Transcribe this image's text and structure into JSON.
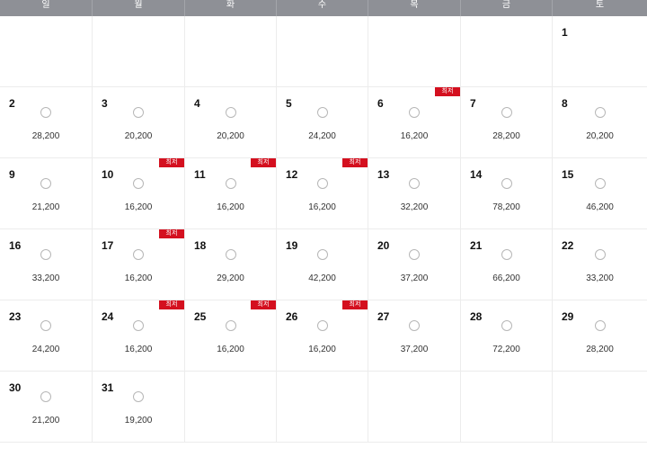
{
  "weekdays": [
    "일",
    "월",
    "화",
    "수",
    "목",
    "금",
    "토"
  ],
  "badge_color": "#d4101f",
  "header_bg": "#8e9096",
  "leading_blanks": 6,
  "days": [
    {
      "day": "1",
      "price": "",
      "lowest": false
    },
    {
      "day": "2",
      "price": "28,200",
      "lowest": false
    },
    {
      "day": "3",
      "price": "20,200",
      "lowest": false
    },
    {
      "day": "4",
      "price": "20,200",
      "lowest": false
    },
    {
      "day": "5",
      "price": "24,200",
      "lowest": false
    },
    {
      "day": "6",
      "price": "16,200",
      "lowest": true
    },
    {
      "day": "7",
      "price": "28,200",
      "lowest": false
    },
    {
      "day": "8",
      "price": "20,200",
      "lowest": false
    },
    {
      "day": "9",
      "price": "21,200",
      "lowest": false
    },
    {
      "day": "10",
      "price": "16,200",
      "lowest": true
    },
    {
      "day": "11",
      "price": "16,200",
      "lowest": true
    },
    {
      "day": "12",
      "price": "16,200",
      "lowest": true
    },
    {
      "day": "13",
      "price": "32,200",
      "lowest": false
    },
    {
      "day": "14",
      "price": "78,200",
      "lowest": false
    },
    {
      "day": "15",
      "price": "46,200",
      "lowest": false
    },
    {
      "day": "16",
      "price": "33,200",
      "lowest": false
    },
    {
      "day": "17",
      "price": "16,200",
      "lowest": true
    },
    {
      "day": "18",
      "price": "29,200",
      "lowest": false
    },
    {
      "day": "19",
      "price": "42,200",
      "lowest": false
    },
    {
      "day": "20",
      "price": "37,200",
      "lowest": false
    },
    {
      "day": "21",
      "price": "66,200",
      "lowest": false
    },
    {
      "day": "22",
      "price": "33,200",
      "lowest": false
    },
    {
      "day": "23",
      "price": "24,200",
      "lowest": false
    },
    {
      "day": "24",
      "price": "16,200",
      "lowest": true
    },
    {
      "day": "25",
      "price": "16,200",
      "lowest": true
    },
    {
      "day": "26",
      "price": "16,200",
      "lowest": true
    },
    {
      "day": "27",
      "price": "37,200",
      "lowest": false
    },
    {
      "day": "28",
      "price": "72,200",
      "lowest": false
    },
    {
      "day": "29",
      "price": "28,200",
      "lowest": false
    },
    {
      "day": "30",
      "price": "21,200",
      "lowest": false
    },
    {
      "day": "31",
      "price": "19,200",
      "lowest": false
    }
  ],
  "badge_label": "최저"
}
